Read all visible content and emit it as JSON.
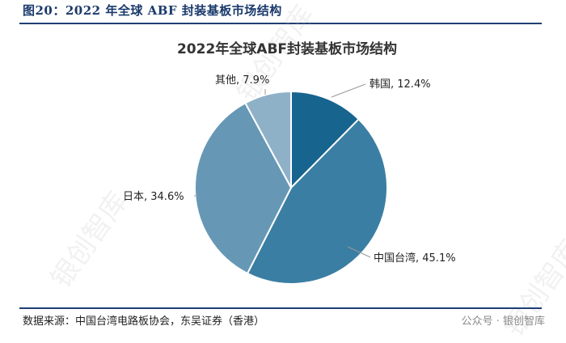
{
  "figure_title": "图20：2022 年全球 ABF 封装基板市场结构",
  "source": "数据来源：中国台湾电路板协会，东吴证券（香港）",
  "watermark": "公众号 · 银创智库",
  "bg_watermark": "银创智库",
  "chart_data": {
    "type": "pie",
    "title": "2022年全球ABF封装基板市场结构",
    "slices": [
      {
        "label": "韩国",
        "value": 12.4,
        "display": "韩国, 12.4%",
        "color": "#17648f"
      },
      {
        "label": "中国台湾",
        "value": 45.1,
        "display": "中国台湾, 45.1%",
        "color": "#3b7ea3"
      },
      {
        "label": "日本",
        "value": 34.6,
        "display": "日本, 34.6%",
        "color": "#6698b6"
      },
      {
        "label": "其他",
        "value": 7.9,
        "display": "其他, 7.9%",
        "color": "#8fb1c8"
      }
    ],
    "start_angle_deg": 0,
    "direction": "clockwise",
    "legend": "none"
  }
}
